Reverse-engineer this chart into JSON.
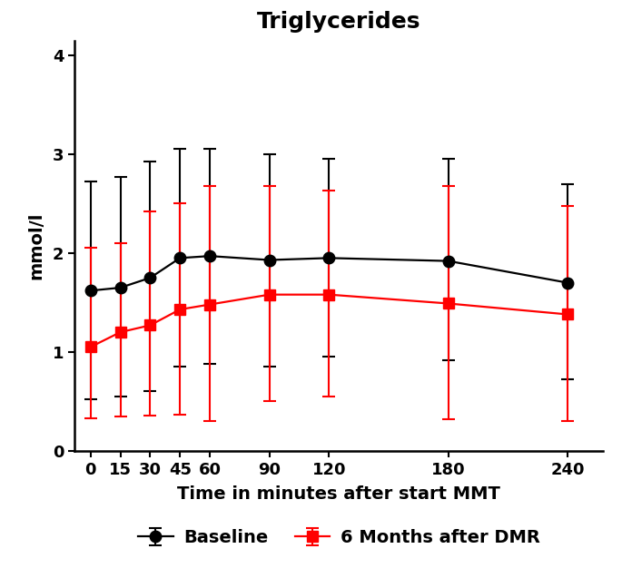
{
  "title": "Triglycerides",
  "xlabel": "Time in minutes after start MMT",
  "ylabel": "mmol/l",
  "x": [
    0,
    15,
    30,
    45,
    60,
    90,
    120,
    180,
    240
  ],
  "baseline_y": [
    1.62,
    1.65,
    1.75,
    1.95,
    1.97,
    1.93,
    1.95,
    1.92,
    1.7
  ],
  "baseline_upper": [
    2.72,
    2.77,
    2.93,
    3.05,
    3.05,
    3.0,
    2.95,
    2.95,
    2.7
  ],
  "baseline_lower": [
    0.52,
    0.55,
    0.6,
    0.85,
    0.88,
    0.85,
    0.95,
    0.92,
    0.72
  ],
  "dmr_y": [
    1.05,
    1.2,
    1.27,
    1.43,
    1.48,
    1.58,
    1.58,
    1.49,
    1.38
  ],
  "dmr_upper": [
    2.05,
    2.1,
    2.42,
    2.5,
    2.68,
    2.68,
    2.63,
    2.68,
    2.48
  ],
  "dmr_lower": [
    0.33,
    0.35,
    0.36,
    0.37,
    0.3,
    0.5,
    0.55,
    0.32,
    0.3
  ],
  "baseline_color": "#000000",
  "dmr_color": "#ff0000",
  "ylim": [
    0,
    4.15
  ],
  "yticks": [
    0,
    1,
    2,
    3,
    4
  ],
  "legend_baseline": "Baseline",
  "legend_dmr": "6 Months after DMR",
  "title_fontsize": 18,
  "axis_label_fontsize": 14,
  "tick_fontsize": 13,
  "legend_fontsize": 14,
  "background_color": "#ffffff"
}
